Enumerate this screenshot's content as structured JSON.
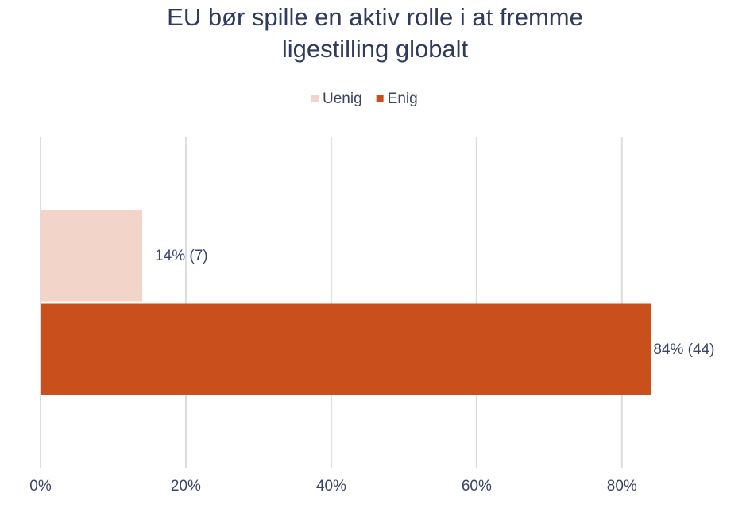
{
  "chart_data": {
    "type": "hbar",
    "title": "EU bør spille en aktiv rolle i at fremme ligestilling globalt",
    "categories": [
      null
    ],
    "series": [
      {
        "name": "Uenig",
        "color": "#f2d5c8",
        "values": [
          14
        ],
        "value_labels": [
          "14% (7)"
        ]
      },
      {
        "name": "Enig",
        "color": "#c9501c",
        "values": [
          84
        ],
        "value_labels": [
          "84% (44)"
        ]
      }
    ],
    "xlim": [
      0,
      95
    ],
    "xticks": [
      {
        "value": 0,
        "label": "0%"
      },
      {
        "value": 20,
        "label": "20%"
      },
      {
        "value": 40,
        "label": "40%"
      },
      {
        "value": 60,
        "label": "60%"
      },
      {
        "value": 80,
        "label": "80%"
      }
    ],
    "grid": true,
    "legend": "top"
  }
}
